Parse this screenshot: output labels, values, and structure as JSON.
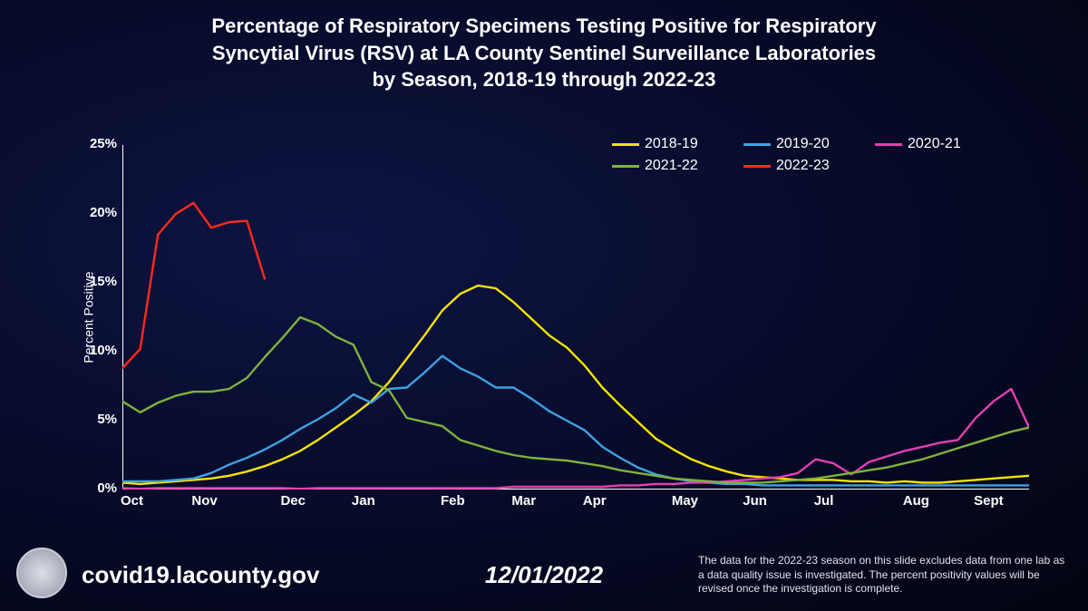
{
  "title_line1": "Percentage of Respiratory Specimens Testing Positive for Respiratory",
  "title_line2": "Syncytial Virus (RSV) at LA County Sentinel Surveillance Laboratories",
  "title_line3": "by Season, 2018-19 through 2022-23",
  "footer": {
    "site": "covid19.lacounty.gov",
    "date": "12/01/2022",
    "note": "The data for the 2022-23 season on this slide excludes data from one lab as a data quality issue is investigated. The percent positivity values will be revised once the investigation is complete."
  },
  "chart": {
    "type": "line",
    "y_label": "Percent Positive",
    "ylim": [
      0,
      25
    ],
    "y_ticks": [
      0,
      5,
      10,
      15,
      20,
      25
    ],
    "y_tick_suffix": "%",
    "x_points": 52,
    "x_major_ticks": [
      {
        "pos": 0,
        "label": "Oct"
      },
      {
        "pos": 4,
        "label": "Nov"
      },
      {
        "pos": 9,
        "label": "Dec"
      },
      {
        "pos": 13,
        "label": "Jan"
      },
      {
        "pos": 18,
        "label": "Feb"
      },
      {
        "pos": 22,
        "label": "Mar"
      },
      {
        "pos": 26,
        "label": "Apr"
      },
      {
        "pos": 31,
        "label": "May"
      },
      {
        "pos": 35,
        "label": "Jun"
      },
      {
        "pos": 39,
        "label": "Jul"
      },
      {
        "pos": 44,
        "label": "Aug"
      },
      {
        "pos": 48,
        "label": "Sept"
      }
    ],
    "axis_color": "#ffffff",
    "axis_width": 2,
    "line_width": 2.4,
    "font_size_ticks": 15,
    "font_size_legend": 16,
    "series": [
      {
        "name": "2018-19",
        "color": "#f5e400",
        "values": [
          0.5,
          0.4,
          0.5,
          0.6,
          0.7,
          0.8,
          1.0,
          1.3,
          1.7,
          2.2,
          2.8,
          3.6,
          4.5,
          5.4,
          6.4,
          7.8,
          9.5,
          11.2,
          13.0,
          14.2,
          14.8,
          14.6,
          13.6,
          12.4,
          11.2,
          10.3,
          9.0,
          7.4,
          6.1,
          4.9,
          3.7,
          2.9,
          2.2,
          1.7,
          1.3,
          1.0,
          0.9,
          0.8,
          0.7,
          0.7,
          0.7,
          0.6,
          0.6,
          0.5,
          0.6,
          0.5,
          0.5,
          0.6,
          0.7,
          0.8,
          0.9,
          1.0
        ]
      },
      {
        "name": "2019-20",
        "color": "#3da2e3",
        "values": [
          0.6,
          0.6,
          0.6,
          0.7,
          0.8,
          1.2,
          1.8,
          2.3,
          2.9,
          3.6,
          4.4,
          5.1,
          5.9,
          6.9,
          6.3,
          7.3,
          7.4,
          8.5,
          9.7,
          8.8,
          8.2,
          7.4,
          7.4,
          6.6,
          5.7,
          5.0,
          4.3,
          3.1,
          2.3,
          1.6,
          1.1,
          0.8,
          0.6,
          0.5,
          0.4,
          0.4,
          0.3,
          0.3,
          0.3,
          0.3,
          0.3,
          0.3,
          0.3,
          0.3,
          0.3,
          0.3,
          0.3,
          0.3,
          0.3,
          0.3,
          0.3,
          0.3
        ]
      },
      {
        "name": "2020-21",
        "color": "#e53fb0",
        "values": [
          0.1,
          0.05,
          0.1,
          0.1,
          0.1,
          0.1,
          0.1,
          0.1,
          0.1,
          0.1,
          0.05,
          0.1,
          0.1,
          0.1,
          0.1,
          0.1,
          0.1,
          0.1,
          0.1,
          0.1,
          0.1,
          0.1,
          0.2,
          0.2,
          0.2,
          0.2,
          0.2,
          0.2,
          0.3,
          0.3,
          0.4,
          0.4,
          0.5,
          0.5,
          0.6,
          0.7,
          0.8,
          0.9,
          1.2,
          2.2,
          1.9,
          1.1,
          2.0,
          2.4,
          2.8,
          3.1,
          3.4,
          3.6,
          5.2,
          6.4,
          7.3,
          4.5
        ]
      },
      {
        "name": "2021-22",
        "color": "#7fb23a",
        "values": [
          6.4,
          5.6,
          6.3,
          6.8,
          7.1,
          7.1,
          7.3,
          8.1,
          9.6,
          11.0,
          12.5,
          12.0,
          11.1,
          10.5,
          7.8,
          7.2,
          5.2,
          4.9,
          4.6,
          3.6,
          3.2,
          2.8,
          2.5,
          2.3,
          2.2,
          2.1,
          1.9,
          1.7,
          1.4,
          1.2,
          1.0,
          0.8,
          0.7,
          0.6,
          0.5,
          0.5,
          0.5,
          0.6,
          0.7,
          0.8,
          1.0,
          1.2,
          1.4,
          1.6,
          1.9,
          2.2,
          2.6,
          3.0,
          3.4,
          3.8,
          4.2,
          4.5
        ]
      },
      {
        "name": "2022-23",
        "color": "#ff2a1a",
        "values": [
          8.8,
          10.2,
          18.5,
          20.0,
          20.8,
          19.0,
          19.4,
          19.5,
          15.3
        ]
      }
    ]
  }
}
